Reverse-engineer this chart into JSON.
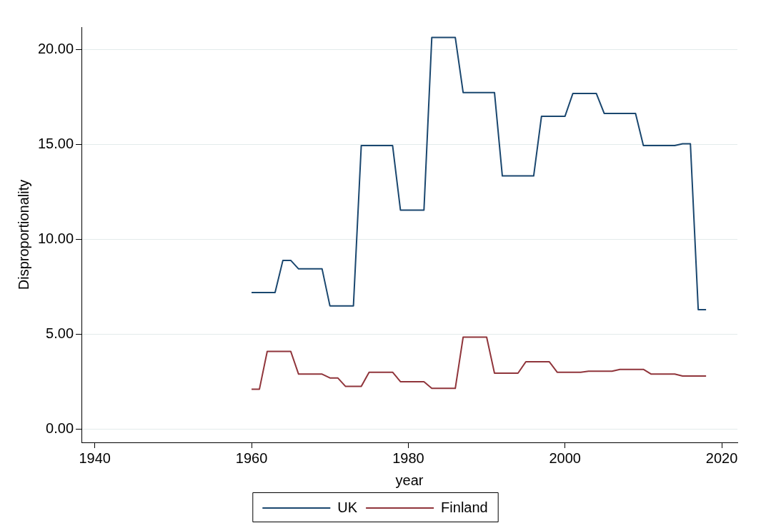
{
  "chart_data": {
    "type": "line",
    "xlabel": "year",
    "ylabel": "Disproportionality",
    "xlim": [
      1938.3,
      2022
    ],
    "xticks": [
      1940,
      1960,
      1980,
      2000,
      2020
    ],
    "ylim": [
      -0.7,
      21.2
    ],
    "yticks": [
      {
        "value": 0,
        "label": "0.00"
      },
      {
        "value": 5,
        "label": "5.00"
      },
      {
        "value": 10,
        "label": "10.00"
      },
      {
        "value": 15,
        "label": "15.00"
      },
      {
        "value": 20,
        "label": "20.00"
      }
    ],
    "grid": "y",
    "legend": "bottom",
    "marker": "none",
    "line_style": "solid",
    "series": [
      {
        "name": "UK",
        "color": "#1a476f",
        "x": [
          1960,
          1963,
          1964,
          1965,
          1966,
          1969,
          1970,
          1973,
          1974,
          1978,
          1979,
          1982,
          1983,
          1986,
          1987,
          1991,
          1992,
          1996,
          1997,
          2000,
          2001,
          2004,
          2005,
          2009,
          2010,
          2014,
          2015,
          2016,
          2017,
          2018
        ],
        "values": [
          7.2,
          7.2,
          8.9,
          8.9,
          8.45,
          8.45,
          6.5,
          6.5,
          14.95,
          14.95,
          11.55,
          11.55,
          20.65,
          20.65,
          17.75,
          17.75,
          13.35,
          13.35,
          16.5,
          16.5,
          17.7,
          17.7,
          16.65,
          16.65,
          14.95,
          14.95,
          15.05,
          15.05,
          6.3,
          6.3
        ]
      },
      {
        "name": "Finland",
        "color": "#90353b",
        "x": [
          1960,
          1961,
          1962,
          1965,
          1966,
          1969,
          1970,
          1971,
          1972,
          1974,
          1975,
          1978,
          1979,
          1982,
          1983,
          1986,
          1987,
          1990,
          1991,
          1994,
          1995,
          1998,
          1999,
          2002,
          2003,
          2006,
          2007,
          2010,
          2011,
          2014,
          2015,
          2018
        ],
        "values": [
          2.1,
          2.1,
          4.1,
          4.1,
          2.9,
          2.9,
          2.7,
          2.7,
          2.25,
          2.25,
          3.0,
          3.0,
          2.5,
          2.5,
          2.15,
          2.15,
          4.85,
          4.85,
          2.95,
          2.95,
          3.55,
          3.55,
          3.0,
          3.0,
          3.05,
          3.05,
          3.15,
          3.15,
          2.9,
          2.9,
          2.8,
          2.8
        ]
      }
    ]
  }
}
